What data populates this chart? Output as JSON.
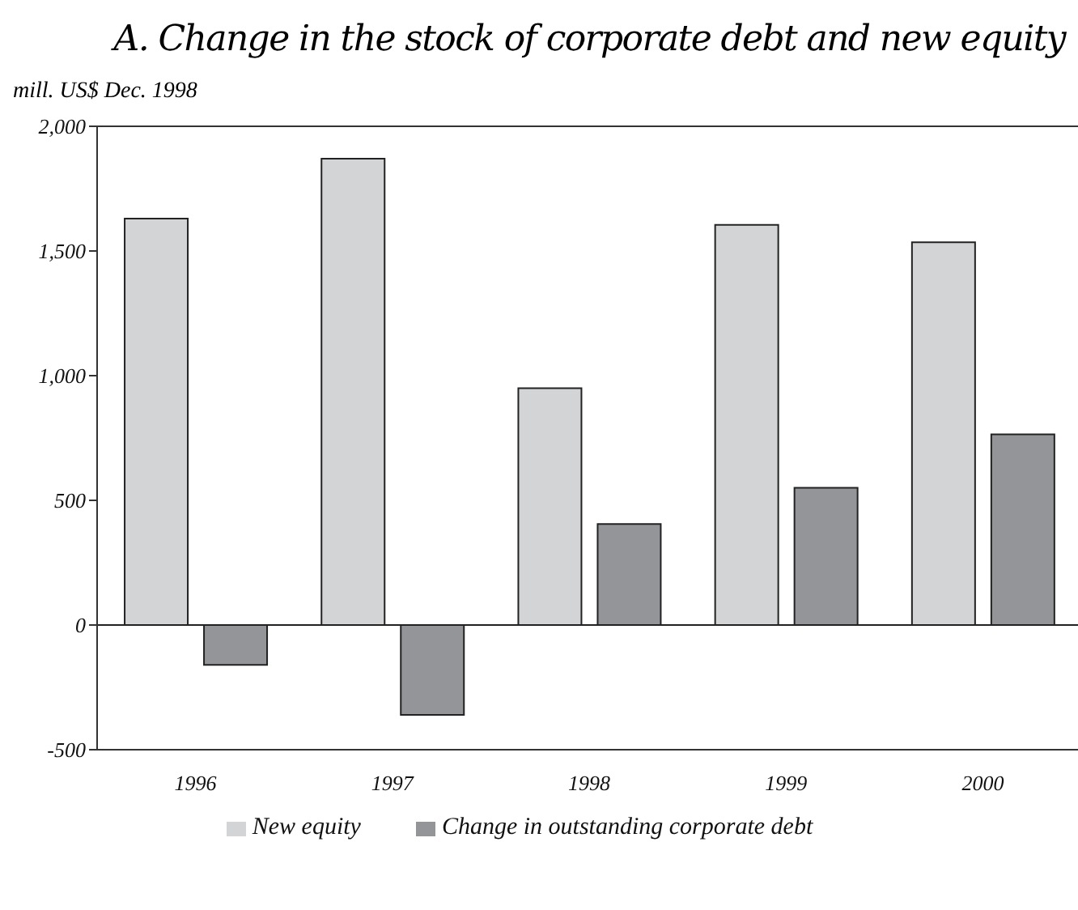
{
  "chart_data": {
    "type": "bar",
    "title": "A. Change in the stock of corporate debt and new equity",
    "ylabel": "mill. US$ Dec. 1998",
    "categories": [
      "1996",
      "1997",
      "1998",
      "1999",
      "2000"
    ],
    "series": [
      {
        "name": "New equity",
        "color": "#d3d4d6",
        "values": [
          1630,
          1870,
          950,
          1605,
          1535
        ]
      },
      {
        "name": "Change in outstanding corporate debt",
        "color": "#939598",
        "values": [
          -160,
          -360,
          405,
          550,
          765
        ]
      }
    ],
    "ylim": [
      -500,
      2000
    ],
    "yticks": [
      {
        "value": -500,
        "label": "-500"
      },
      0,
      500,
      {
        "value": 1000,
        "label": "1,000"
      },
      {
        "value": 1500,
        "label": "1,500"
      },
      {
        "value": 2000,
        "label": "2,000"
      }
    ],
    "ref_lines": [
      {
        "axis": "y",
        "value": 0
      }
    ],
    "grid": false,
    "legend": "bottom"
  }
}
